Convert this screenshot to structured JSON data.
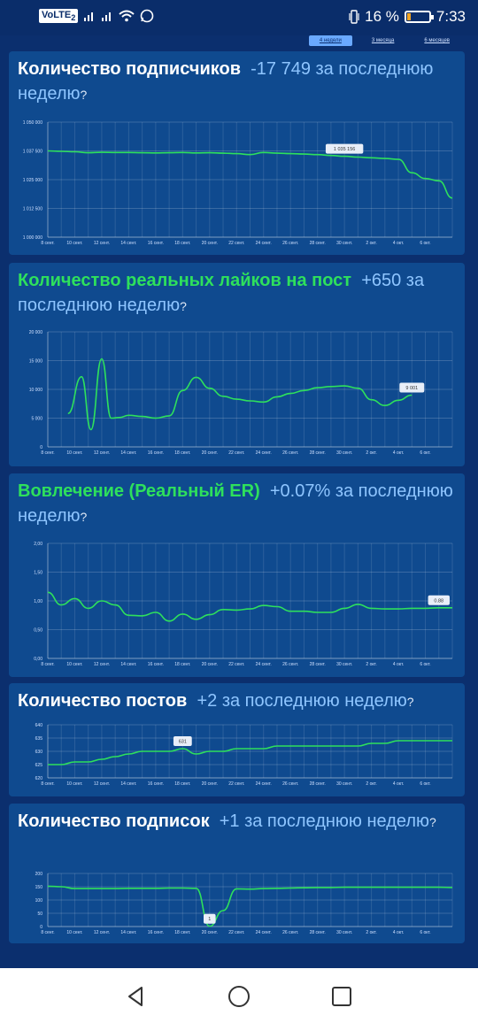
{
  "status_bar": {
    "volte": "VoLTE",
    "sim_slot": "2",
    "battery_percent": "16 %",
    "battery_level": 0.16,
    "time": "7:33",
    "icons": [
      "signal-icon",
      "wifi-icon",
      "whatsapp-icon",
      "vibrate-icon",
      "battery-icon"
    ]
  },
  "period_tabs": [
    {
      "label": "4 недели",
      "active": true
    },
    {
      "label": "3 месяца",
      "active": false
    },
    {
      "label": "6 месяцев",
      "active": false
    }
  ],
  "colors": {
    "line": "#2ee05c",
    "accent": "#8ec5ff",
    "card": "#0f4a8f",
    "background": "#0b2f6e"
  },
  "x_labels": [
    "8 сент.",
    "10 сент.",
    "12 сент.",
    "14 сент.",
    "16 сент.",
    "18 сент.",
    "20 сент.",
    "22 сент.",
    "24 сент.",
    "26 сент.",
    "28 сент.",
    "30 сент.",
    "2 окт.",
    "4 окт.",
    "6 окт."
  ],
  "cards": [
    {
      "title": "Количество подписчиков",
      "delta": "-17 749 за последнюю неделю",
      "help": "?",
      "title_green": false,
      "tooltip": "1 035 156",
      "chart_data": {
        "type": "line",
        "ylim": [
          1000000,
          1050000
        ],
        "y_ticks": [
          1000000,
          1012500,
          1025000,
          1037500,
          1050000
        ],
        "y_tick_labels": [
          "1 000 000",
          "1 012 500",
          "1 025 000",
          "1 037 500",
          "1 050 000"
        ],
        "x": [
          8,
          9,
          10,
          11,
          12,
          13,
          14,
          15,
          16,
          17,
          18,
          19,
          20,
          21,
          22,
          23,
          24,
          25,
          26,
          27,
          28,
          29,
          30,
          31,
          32,
          33,
          34,
          35,
          36,
          37,
          38
        ],
        "values": [
          1037500,
          1037300,
          1037100,
          1036700,
          1036900,
          1036800,
          1036800,
          1036700,
          1036600,
          1036700,
          1036800,
          1036600,
          1036700,
          1036500,
          1036300,
          1035900,
          1036800,
          1036500,
          1036300,
          1036100,
          1035900,
          1035500,
          1035156,
          1034800,
          1034500,
          1034200,
          1033800,
          1028000,
          1025500,
          1024500,
          1017000
        ]
      }
    },
    {
      "title": "Количество реальных лайков на пост",
      "delta": "+650 за последнюю неделю",
      "help": "?",
      "title_green": true,
      "tooltip": "9 001",
      "chart_data": {
        "type": "line",
        "ylim": [
          0,
          20000
        ],
        "y_ticks": [
          0,
          5000,
          10000,
          15000,
          20000
        ],
        "y_tick_labels": [
          "0",
          "5 000",
          "10 000",
          "15 000",
          "20 000"
        ],
        "x": [
          9.5,
          10.5,
          11.2,
          12.0,
          12.7,
          13.3,
          14.0,
          15.0,
          16.0,
          17.0,
          18.0,
          19.0,
          20.0,
          21.0,
          22.0,
          23.0,
          24.0,
          25.0,
          26.0,
          27.0,
          28.0,
          29.0,
          30.0,
          31.0,
          32.0,
          33.0,
          34.0,
          35.0
        ],
        "values": [
          5800,
          12200,
          3000,
          15300,
          5000,
          5100,
          5500,
          5300,
          5000,
          5400,
          9800,
          12100,
          10200,
          8800,
          8300,
          8000,
          7800,
          8700,
          9300,
          9800,
          10300,
          10500,
          10600,
          10200,
          8200,
          7200,
          8100,
          9001
        ]
      }
    },
    {
      "title": "Вовлечение (Реальный ER)",
      "delta": "+0.07% за последнюю неделю",
      "help": "?",
      "title_green": true,
      "tooltip": "0.88",
      "chart_data": {
        "type": "line",
        "ylim": [
          0,
          2
        ],
        "y_ticks": [
          0,
          0.5,
          1,
          1.5,
          2
        ],
        "y_tick_labels": [
          "0,00",
          "0,50",
          "1,00",
          "1,50",
          "2,00"
        ],
        "x": [
          8,
          9,
          10,
          11,
          12,
          13,
          14,
          15,
          16,
          17,
          18,
          19,
          20,
          21,
          22,
          23,
          24,
          25,
          26,
          27,
          28,
          29,
          30,
          31,
          32,
          33,
          34,
          35,
          36,
          37,
          38
        ],
        "values": [
          1.15,
          0.93,
          1.04,
          0.87,
          1.0,
          0.93,
          0.75,
          0.74,
          0.8,
          0.65,
          0.77,
          0.68,
          0.76,
          0.85,
          0.84,
          0.86,
          0.92,
          0.9,
          0.82,
          0.82,
          0.8,
          0.8,
          0.87,
          0.94,
          0.87,
          0.86,
          0.86,
          0.87,
          0.87,
          0.88,
          0.88
        ]
      }
    },
    {
      "title": "Количество постов",
      "delta": "+2 за последнюю неделю",
      "help": "?",
      "title_green": false,
      "tooltip": "631",
      "chart_data": {
        "type": "line",
        "ylim": [
          620,
          640
        ],
        "y_ticks": [
          620,
          625,
          630,
          635,
          640
        ],
        "y_tick_labels": [
          "620",
          "625",
          "630",
          "635",
          "640"
        ],
        "x": [
          8,
          9,
          10,
          11,
          12,
          13,
          14,
          15,
          16,
          17,
          18,
          19,
          20,
          21,
          22,
          23,
          24,
          25,
          26,
          27,
          28,
          29,
          30,
          31,
          32,
          33,
          34,
          35,
          36,
          37,
          38
        ],
        "values": [
          625,
          625,
          626,
          626,
          627,
          628,
          629,
          630,
          630,
          630,
          631,
          629,
          630,
          630,
          631,
          631,
          631,
          632,
          632,
          632,
          632,
          632,
          632,
          632,
          633,
          633,
          634,
          634,
          634,
          634,
          634
        ]
      }
    },
    {
      "title": "Количество подписок",
      "delta": "+1 за последнюю неделю",
      "help": "?",
      "title_green": false,
      "tooltip": "1",
      "chart_data": {
        "type": "line",
        "ylim": [
          0,
          200
        ],
        "y_ticks": [
          0,
          50,
          100,
          150,
          200
        ],
        "y_tick_labels": [
          "0",
          "50",
          "100",
          "150",
          "200"
        ],
        "x": [
          8,
          9,
          10,
          11,
          12,
          13,
          14,
          15,
          16,
          17,
          18,
          19,
          20,
          21,
          22,
          23,
          24,
          25,
          26,
          27,
          28,
          29,
          30,
          31,
          32,
          33,
          34,
          35,
          36,
          37,
          38
        ],
        "values": [
          152,
          150,
          143,
          143,
          143,
          143,
          144,
          144,
          144,
          145,
          145,
          144,
          1,
          60,
          142,
          141,
          143,
          144,
          145,
          146,
          147,
          147,
          148,
          148,
          148,
          148,
          148,
          148,
          148,
          148,
          147
        ]
      }
    }
  ],
  "nav_bar": {
    "icons": [
      "back-icon",
      "home-icon",
      "recents-icon"
    ]
  }
}
